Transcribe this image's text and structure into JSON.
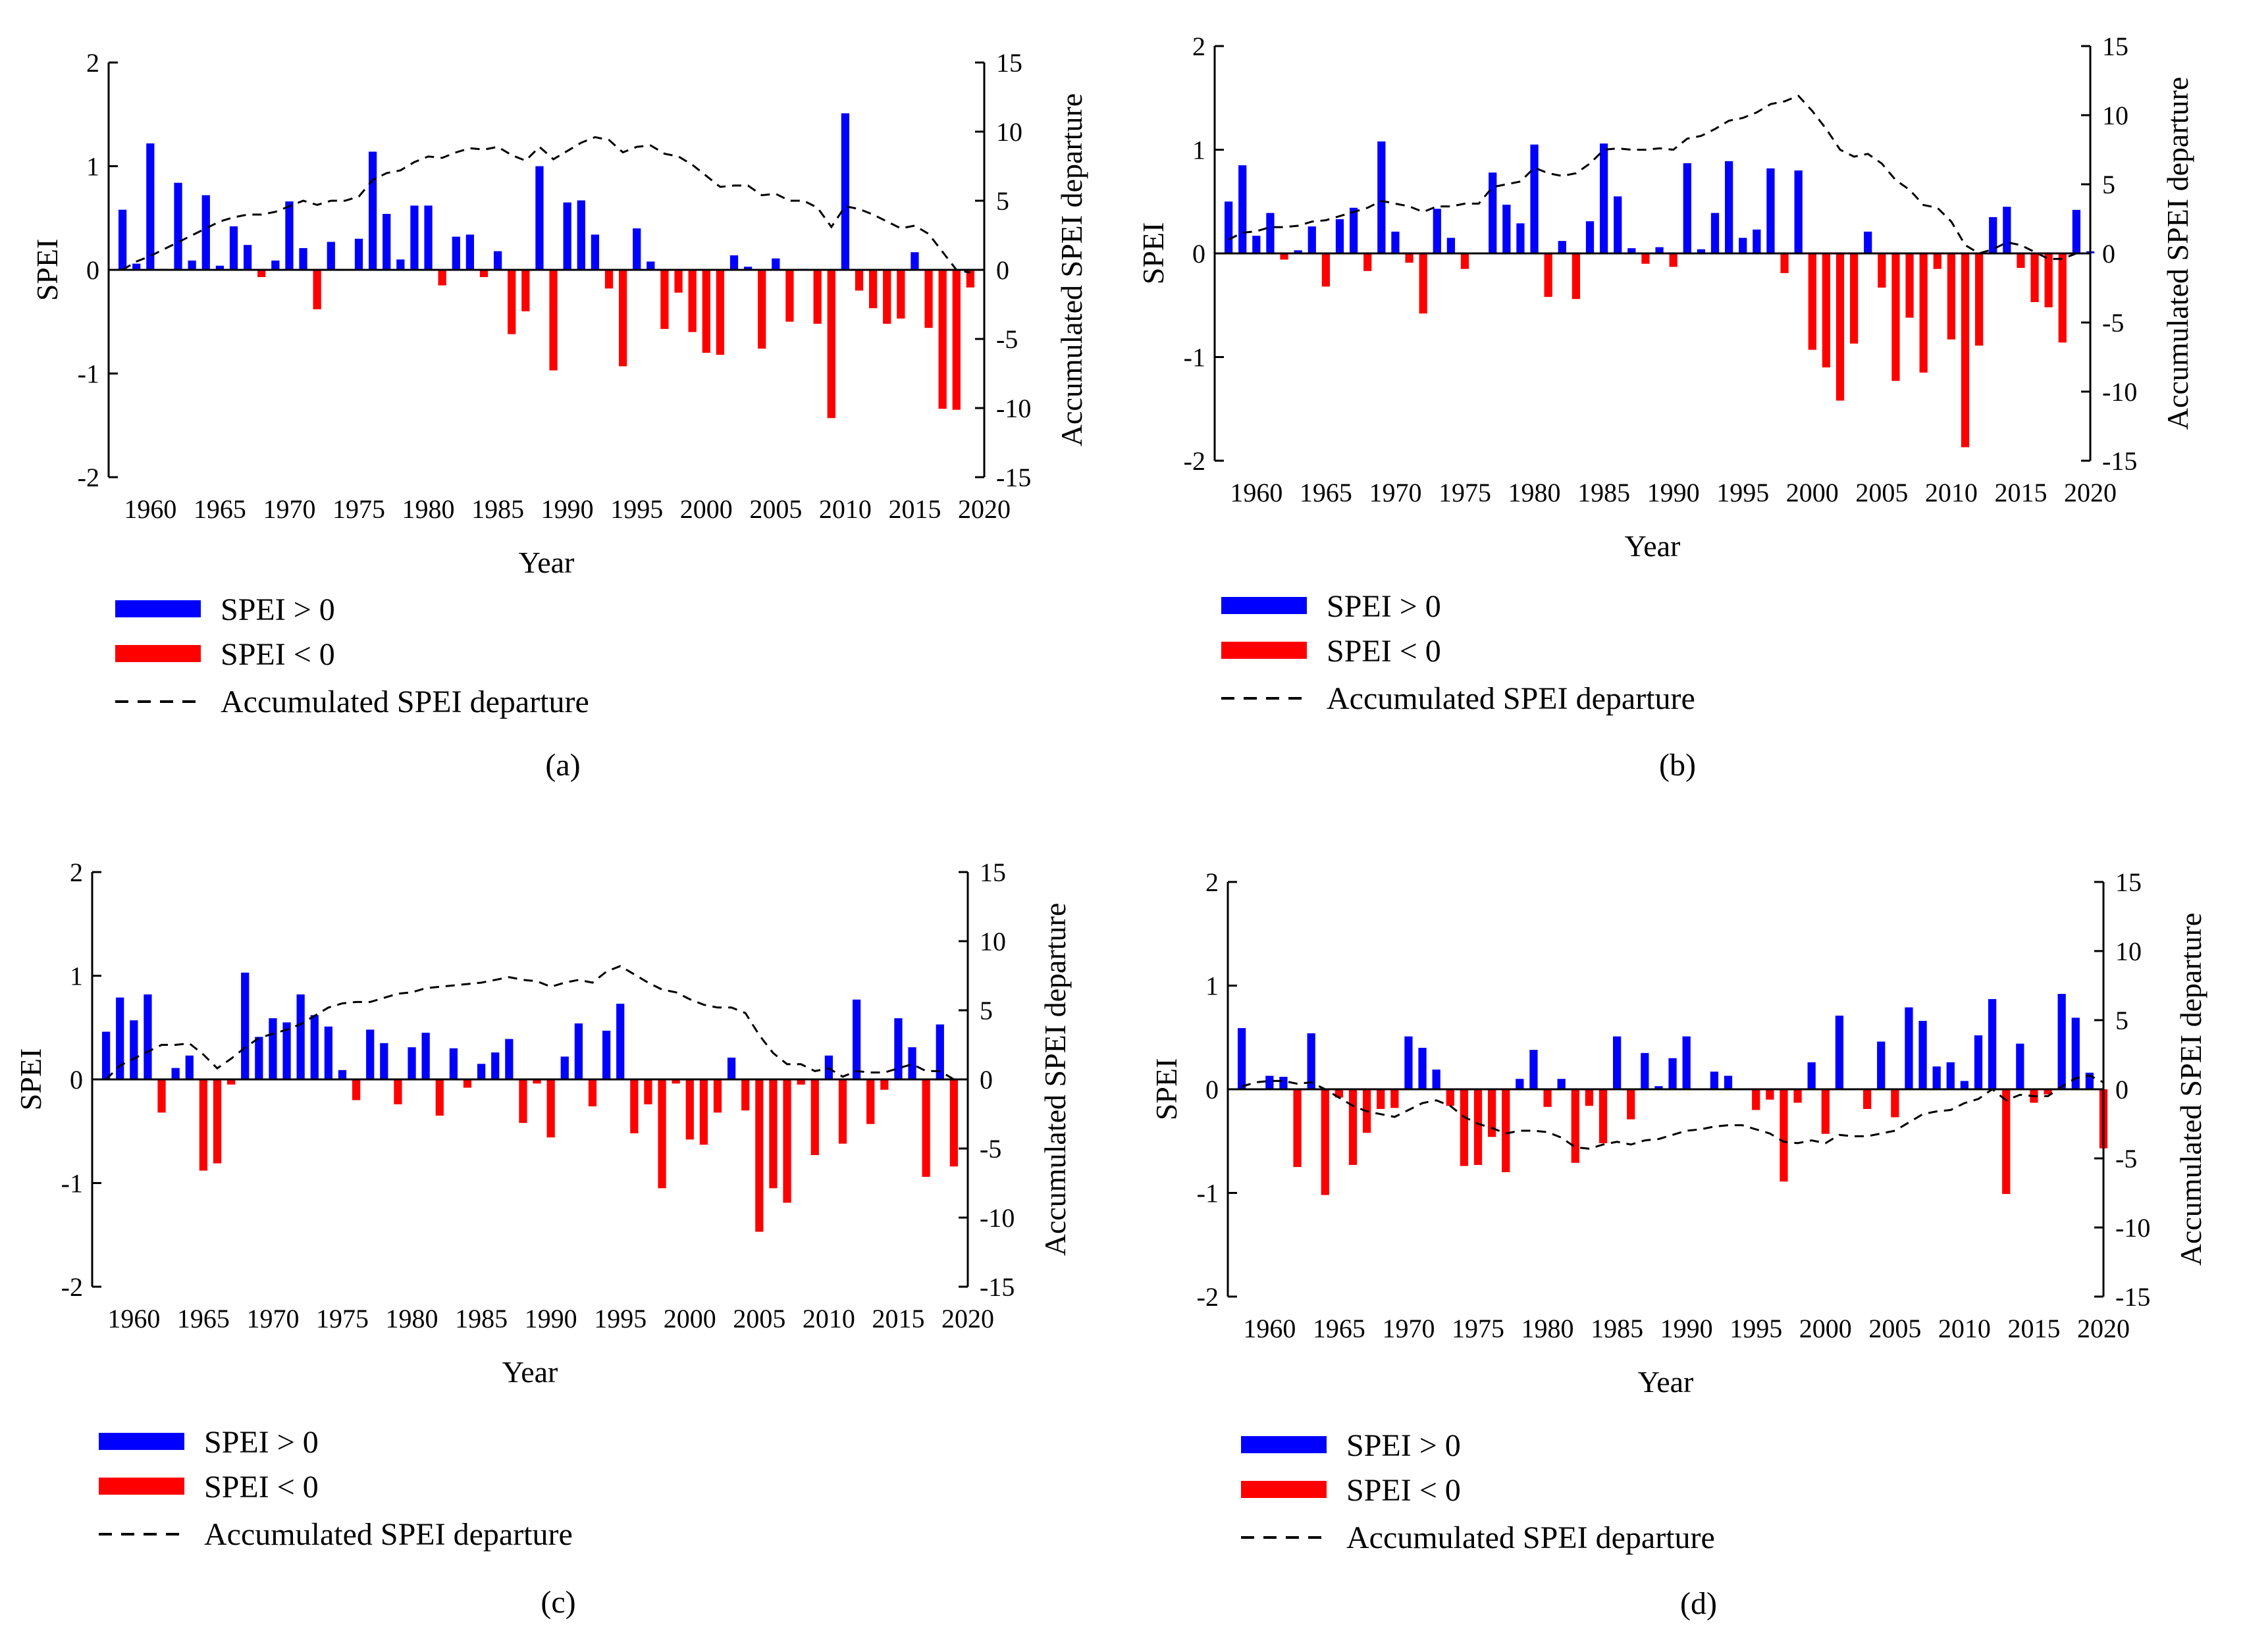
{
  "figure": {
    "xlabel": "Year",
    "y_left_label": "SPEI",
    "y_right_label": "Accumulated SPEI departure",
    "legend": {
      "pos_label": "SPEI > 0",
      "neg_label": "SPEI < 0",
      "line_label": "Accumulated SPEI departure"
    },
    "colors": {
      "positive": "#0000ff",
      "negative": "#ff0000",
      "line": "#000000"
    }
  },
  "chart_data": [
    {
      "type": "bar",
      "panel": "(a)",
      "caption": "(a)",
      "xlabel": "Year",
      "ylabel": "SPEI",
      "y2label": "Accumulated SPEI departure",
      "x_start": 1958,
      "x_ticks": [
        1960,
        1965,
        1970,
        1975,
        1980,
        1985,
        1990,
        1995,
        2000,
        2005,
        2010,
        2015,
        2020
      ],
      "x_tick_labels": [
        "1960",
        "1965",
        "1970",
        "1975",
        "1980",
        "1985",
        "1990",
        "1995",
        "2000",
        "2005",
        "2010",
        "2015",
        "2020"
      ],
      "ylim": [
        -2,
        2
      ],
      "y_ticks": [
        -2,
        -1,
        0,
        1,
        2
      ],
      "y_tick_labels": [
        "-2",
        "-1",
        "0",
        "1",
        "2"
      ],
      "y2lim": [
        -15,
        15
      ],
      "y2_ticks": [
        -15,
        -10,
        -5,
        0,
        5,
        10,
        15
      ],
      "y2_tick_labels": [
        "-15",
        "-10",
        "-5",
        "0",
        "5",
        "10",
        "15"
      ],
      "spei": [
        0.58,
        0.06,
        1.22,
        0.01,
        0.84,
        0.09,
        0.72,
        0.04,
        0.42,
        0.24,
        -0.07,
        0.09,
        0.66,
        0.21,
        -0.38,
        0.27,
        0.0,
        0.3,
        1.14,
        0.54,
        0.1,
        0.62,
        0.62,
        -0.15,
        0.32,
        0.34,
        -0.07,
        0.18,
        -0.62,
        -0.4,
        1.0,
        -0.97,
        0.65,
        0.67,
        0.34,
        -0.18,
        -0.93,
        0.4,
        0.08,
        -0.57,
        -0.22,
        -0.6,
        -0.8,
        -0.82,
        0.14,
        0.03,
        -0.76,
        0.11,
        -0.5,
        0.01,
        -0.52,
        -1.43,
        1.51,
        -0.2,
        -0.37,
        -0.52,
        -0.47,
        0.17,
        -0.56,
        -1.34,
        -1.35,
        -0.17
      ],
      "accumulated": [
        0.0,
        0.6,
        1.0,
        1.5,
        2.0,
        2.5,
        3.0,
        3.5,
        3.8,
        4.0,
        4.0,
        4.2,
        4.6,
        5.0,
        4.7,
        5.0,
        5.0,
        5.3,
        6.5,
        7.0,
        7.2,
        7.8,
        8.2,
        8.1,
        8.5,
        8.8,
        8.7,
        8.9,
        8.3,
        7.9,
        8.9,
        8.0,
        8.6,
        9.2,
        9.6,
        9.4,
        8.5,
        8.9,
        9.0,
        8.4,
        8.2,
        7.6,
        6.8,
        6.0,
        6.1,
        6.1,
        5.4,
        5.5,
        5.0,
        5.0,
        4.5,
        3.1,
        4.6,
        4.4,
        4.0,
        3.5,
        3.0,
        3.2,
        2.6,
        1.3,
        0.0,
        -0.2
      ]
    },
    {
      "type": "bar",
      "panel": "(b)",
      "caption": "(b)",
      "xlabel": "Year",
      "ylabel": "SPEI",
      "y2label": "Accumulated SPEI departure",
      "x_start": 1958,
      "x_ticks": [
        1960,
        1965,
        1970,
        1975,
        1980,
        1985,
        1990,
        1995,
        2000,
        2005,
        2010,
        2015,
        2020
      ],
      "x_tick_labels": [
        "1960",
        "1965",
        "1970",
        "1975",
        "1980",
        "1985",
        "1990",
        "1995",
        "2000",
        "2005",
        "2010",
        "2015",
        "2020"
      ],
      "ylim": [
        -2,
        2
      ],
      "y_ticks": [
        -2,
        -1,
        0,
        1,
        2
      ],
      "y_tick_labels": [
        "-2",
        "-1",
        "0",
        "1",
        "2"
      ],
      "y2lim": [
        -15,
        15
      ],
      "y2_ticks": [
        -15,
        -10,
        -5,
        0,
        5,
        10,
        15
      ],
      "y2_tick_labels": [
        "-15",
        "-10",
        "-5",
        "0",
        "5",
        "10",
        "15"
      ],
      "spei": [
        0.5,
        0.85,
        0.17,
        0.39,
        -0.06,
        0.03,
        0.26,
        -0.32,
        0.33,
        0.44,
        -0.17,
        1.08,
        0.21,
        -0.09,
        -0.58,
        0.43,
        0.15,
        -0.15,
        0.0,
        0.78,
        0.47,
        0.29,
        1.05,
        -0.42,
        0.12,
        -0.44,
        0.31,
        1.06,
        0.55,
        0.05,
        -0.1,
        0.06,
        -0.13,
        0.87,
        0.04,
        0.39,
        0.89,
        0.15,
        0.23,
        0.82,
        -0.19,
        0.8,
        -0.93,
        -1.1,
        -1.42,
        -0.87,
        0.21,
        -0.33,
        -1.23,
        -0.62,
        -1.15,
        -0.15,
        -0.83,
        -1.87,
        -0.89,
        0.35,
        0.45,
        -0.14,
        -0.47,
        -0.52,
        -0.86,
        0.42,
        0.02
      ],
      "accumulated": [
        1.0,
        1.5,
        1.6,
        1.9,
        1.9,
        2.0,
        2.3,
        2.4,
        2.7,
        3.0,
        3.3,
        3.8,
        3.6,
        3.4,
        3.0,
        3.4,
        3.4,
        3.6,
        3.6,
        4.8,
        5.0,
        5.2,
        6.2,
        5.8,
        5.6,
        5.8,
        6.5,
        7.5,
        7.6,
        7.5,
        7.5,
        7.6,
        7.5,
        8.3,
        8.5,
        9.0,
        9.6,
        9.8,
        10.2,
        10.8,
        11.0,
        11.4,
        10.3,
        9.0,
        7.5,
        7.0,
        7.2,
        6.5,
        5.3,
        4.6,
        3.5,
        3.3,
        2.3,
        0.6,
        0.0,
        0.3,
        0.8,
        0.6,
        0.1,
        -0.4,
        -0.4,
        0.0,
        0.0
      ]
    },
    {
      "type": "bar",
      "panel": "(c)",
      "caption": "(c)",
      "xlabel": "Year",
      "ylabel": "SPEI",
      "y2label": "Accumulated SPEI departure",
      "x_start": 1958,
      "x_ticks": [
        1960,
        1965,
        1970,
        1975,
        1980,
        1985,
        1990,
        1995,
        2000,
        2005,
        2010,
        2015,
        2020
      ],
      "x_tick_labels": [
        "1960",
        "1965",
        "1970",
        "1975",
        "1980",
        "1985",
        "1990",
        "1995",
        "2000",
        "2005",
        "2010",
        "2015",
        "2020"
      ],
      "ylim": [
        -2,
        2
      ],
      "y_ticks": [
        -2,
        -1,
        0,
        1,
        2
      ],
      "y_tick_labels": [
        "-2",
        "-1",
        "0",
        "1",
        "2"
      ],
      "y2lim": [
        -15,
        15
      ],
      "y2_ticks": [
        -15,
        -10,
        -5,
        0,
        5,
        10,
        15
      ],
      "y2_tick_labels": [
        "-15",
        "-10",
        "-5",
        "0",
        "5",
        "10",
        "15"
      ],
      "spei": [
        0.46,
        0.79,
        0.57,
        0.82,
        -0.32,
        0.11,
        0.23,
        -0.88,
        -0.81,
        -0.05,
        1.03,
        0.41,
        0.59,
        0.55,
        0.82,
        0.62,
        0.51,
        0.09,
        -0.2,
        0.48,
        0.35,
        -0.24,
        0.31,
        0.45,
        -0.35,
        0.3,
        -0.08,
        0.15,
        0.26,
        0.39,
        -0.42,
        -0.04,
        -0.56,
        0.22,
        0.54,
        -0.26,
        0.47,
        0.73,
        -0.52,
        -0.24,
        -1.05,
        -0.04,
        -0.58,
        -0.63,
        -0.32,
        0.21,
        -0.3,
        -1.47,
        -1.05,
        -1.19,
        -0.05,
        -0.73,
        0.23,
        -0.62,
        0.77,
        -0.43,
        -0.1,
        0.59,
        0.31,
        -0.94,
        0.53,
        -0.84
      ],
      "accumulated": [
        0.0,
        1.0,
        1.5,
        2.0,
        2.5,
        2.5,
        2.6,
        1.8,
        0.8,
        1.5,
        2.3,
        3.0,
        3.3,
        3.6,
        4.0,
        4.6,
        5.2,
        5.5,
        5.6,
        5.6,
        5.9,
        6.2,
        6.3,
        6.6,
        6.7,
        6.8,
        6.9,
        7.0,
        7.2,
        7.4,
        7.2,
        7.1,
        6.7,
        7.0,
        7.2,
        7.0,
        7.8,
        8.2,
        7.6,
        7.0,
        6.5,
        6.3,
        5.8,
        5.4,
        5.2,
        5.2,
        4.8,
        3.2,
        1.9,
        1.1,
        1.1,
        0.6,
        0.8,
        0.2,
        0.6,
        0.5,
        0.5,
        0.8,
        1.1,
        0.6,
        0.6,
        0.0
      ]
    },
    {
      "type": "bar",
      "panel": "(d)",
      "caption": "(d)",
      "xlabel": "Year",
      "ylabel": "SPEI",
      "y2label": "Accumulated SPEI departure",
      "x_start": 1958,
      "x_ticks": [
        1960,
        1965,
        1970,
        1975,
        1980,
        1985,
        1990,
        1995,
        2000,
        2005,
        2010,
        2015,
        2020
      ],
      "x_tick_labels": [
        "1960",
        "1965",
        "1970",
        "1975",
        "1980",
        "1985",
        "1990",
        "1995",
        "2000",
        "2005",
        "2010",
        "2015",
        "2020"
      ],
      "ylim": [
        -2,
        2
      ],
      "y_ticks": [
        -2,
        -1,
        0,
        1,
        2
      ],
      "y_tick_labels": [
        "-2",
        "-1",
        "0",
        "1",
        "2"
      ],
      "y2lim": [
        -15,
        15
      ],
      "y2_ticks": [
        -15,
        -10,
        -5,
        0,
        5,
        10,
        15
      ],
      "y2_tick_labels": [
        "-15",
        "-10",
        "-5",
        "0",
        "5",
        "10",
        "15"
      ],
      "spei": [
        0.59,
        0.0,
        0.13,
        0.12,
        -0.75,
        0.54,
        -1.02,
        -0.08,
        -0.73,
        -0.42,
        -0.19,
        -0.18,
        0.51,
        0.4,
        0.19,
        -0.16,
        -0.74,
        -0.73,
        -0.46,
        -0.8,
        0.1,
        0.38,
        -0.17,
        0.1,
        -0.71,
        -0.16,
        -0.52,
        0.51,
        -0.29,
        0.35,
        0.03,
        0.3,
        0.51,
        0.0,
        0.17,
        0.13,
        0.0,
        -0.2,
        -0.1,
        -0.89,
        -0.13,
        0.26,
        -0.43,
        0.71,
        0.0,
        -0.19,
        0.46,
        -0.27,
        0.79,
        0.66,
        0.22,
        0.26,
        0.08,
        0.52,
        0.87,
        -1.01,
        0.44,
        -0.13,
        -0.05,
        0.92,
        0.69,
        0.16,
        -0.57
      ],
      "accumulated": [
        0.2,
        0.5,
        0.6,
        0.6,
        0.4,
        0.5,
        0.0,
        -0.6,
        -1.2,
        -1.6,
        -1.8,
        -2.0,
        -1.5,
        -1.0,
        -0.8,
        -1.2,
        -2.0,
        -2.5,
        -2.8,
        -3.2,
        -3.0,
        -3.0,
        -3.1,
        -3.5,
        -4.2,
        -4.3,
        -4.0,
        -3.8,
        -4.0,
        -3.7,
        -3.6,
        -3.3,
        -3.0,
        -2.9,
        -2.7,
        -2.6,
        -2.6,
        -2.9,
        -3.2,
        -3.8,
        -3.9,
        -3.7,
        -3.9,
        -3.3,
        -3.4,
        -3.4,
        -3.2,
        -3.0,
        -2.4,
        -1.8,
        -1.6,
        -1.5,
        -1.0,
        -0.7,
        0.0,
        -0.8,
        -0.4,
        -0.5,
        -0.5,
        0.2,
        0.8,
        1.0,
        0.5
      ]
    }
  ]
}
